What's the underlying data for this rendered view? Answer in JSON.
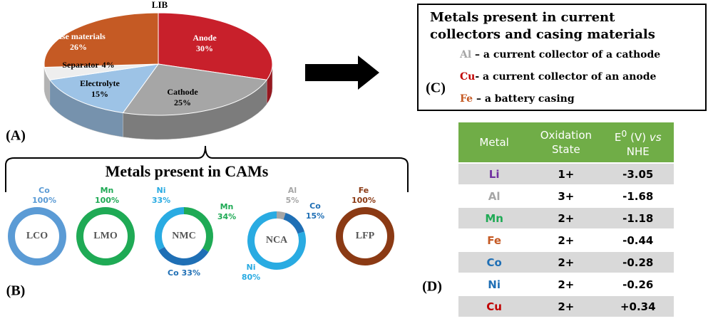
{
  "pie": {
    "title": "LIB",
    "slices": [
      {
        "label": "Anode",
        "value": 30,
        "value_label": "30%",
        "color": "#c8202b"
      },
      {
        "label": "Cathode",
        "value": 25,
        "value_label": "25%",
        "color": "#a6a6a6"
      },
      {
        "label": "Electrolyte",
        "value": 15,
        "value_label": "15%",
        "color": "#9dc3e6"
      },
      {
        "label": "Separator",
        "value": 4,
        "value_label": "4%",
        "color": "#eeeeee"
      },
      {
        "label": "Case materials",
        "value": 26,
        "value_label": "26%",
        "color": "#c55a24"
      }
    ]
  },
  "donuts": {
    "title": "Metals present in CAMs",
    "items": [
      {
        "name": "LCO",
        "segments": [
          {
            "metal": "Co",
            "value": 100,
            "value_label": "100%",
            "color": "#5b9bd5"
          }
        ]
      },
      {
        "name": "LMO",
        "segments": [
          {
            "metal": "Mn",
            "value": 100,
            "value_label": "100%",
            "color": "#1faa55"
          }
        ]
      },
      {
        "name": "NMC",
        "segments": [
          {
            "metal": "Mn",
            "value": 34,
            "value_label": "34%",
            "color": "#1faa55"
          },
          {
            "metal": "Co",
            "value": 33,
            "value_label": "33%",
            "color": "#1f6fb5"
          },
          {
            "metal": "Ni",
            "value": 33,
            "value_label": "33%",
            "color": "#29abe2"
          }
        ]
      },
      {
        "name": "NCA",
        "segments": [
          {
            "metal": "Al",
            "value": 5,
            "value_label": "5%",
            "color": "#a6a6a6"
          },
          {
            "metal": "Co",
            "value": 15,
            "value_label": "15%",
            "color": "#1f6fb5"
          },
          {
            "metal": "Ni",
            "value": 80,
            "value_label": "80%",
            "color": "#29abe2"
          }
        ]
      },
      {
        "name": "LFP",
        "segments": [
          {
            "metal": "Fe",
            "value": 100,
            "value_label": "100%",
            "color": "#8b3a14"
          }
        ]
      }
    ]
  },
  "collectors": {
    "title": "Metals present in current collectors and casing materials",
    "items": [
      {
        "metal": "Al",
        "text": " – a current collector of a cathode",
        "color": "#a6a6a6"
      },
      {
        "metal": "Cu",
        "text": "- a current collector of an anode",
        "color": "#c00000"
      },
      {
        "metal": "Fe",
        "text": " –  a battery casing",
        "color": "#c55a24"
      }
    ]
  },
  "table": {
    "header": {
      "metal": "Metal",
      "oxidation": "Oxidation State",
      "potential_base": "E",
      "potential_sup": "0",
      "potential_unit": " (V) ",
      "potential_vs": "vs",
      "potential_ref": " NHE"
    },
    "rows": [
      {
        "metal": "Li",
        "oxidation": "1+",
        "potential": "-3.05",
        "color": "#7030a0"
      },
      {
        "metal": "Al",
        "oxidation": "3+",
        "potential": "-1.68",
        "color": "#a6a6a6"
      },
      {
        "metal": "Mn",
        "oxidation": "2+",
        "potential": "-1.18",
        "color": "#1faa55"
      },
      {
        "metal": "Fe",
        "oxidation": "2+",
        "potential": "-0.44",
        "color": "#c55a24"
      },
      {
        "metal": "Co",
        "oxidation": "2+",
        "potential": "-0.28",
        "color": "#1f6fb5"
      },
      {
        "metal": "Ni",
        "oxidation": "2+",
        "potential": "-0.26",
        "color": "#1f6fb5"
      },
      {
        "metal": "Cu",
        "oxidation": "2+",
        "potential": "+0.34",
        "color": "#c00000"
      }
    ]
  },
  "panels": {
    "a": "(A)",
    "b": "(B)",
    "c": "(C)",
    "d": "(D)"
  }
}
